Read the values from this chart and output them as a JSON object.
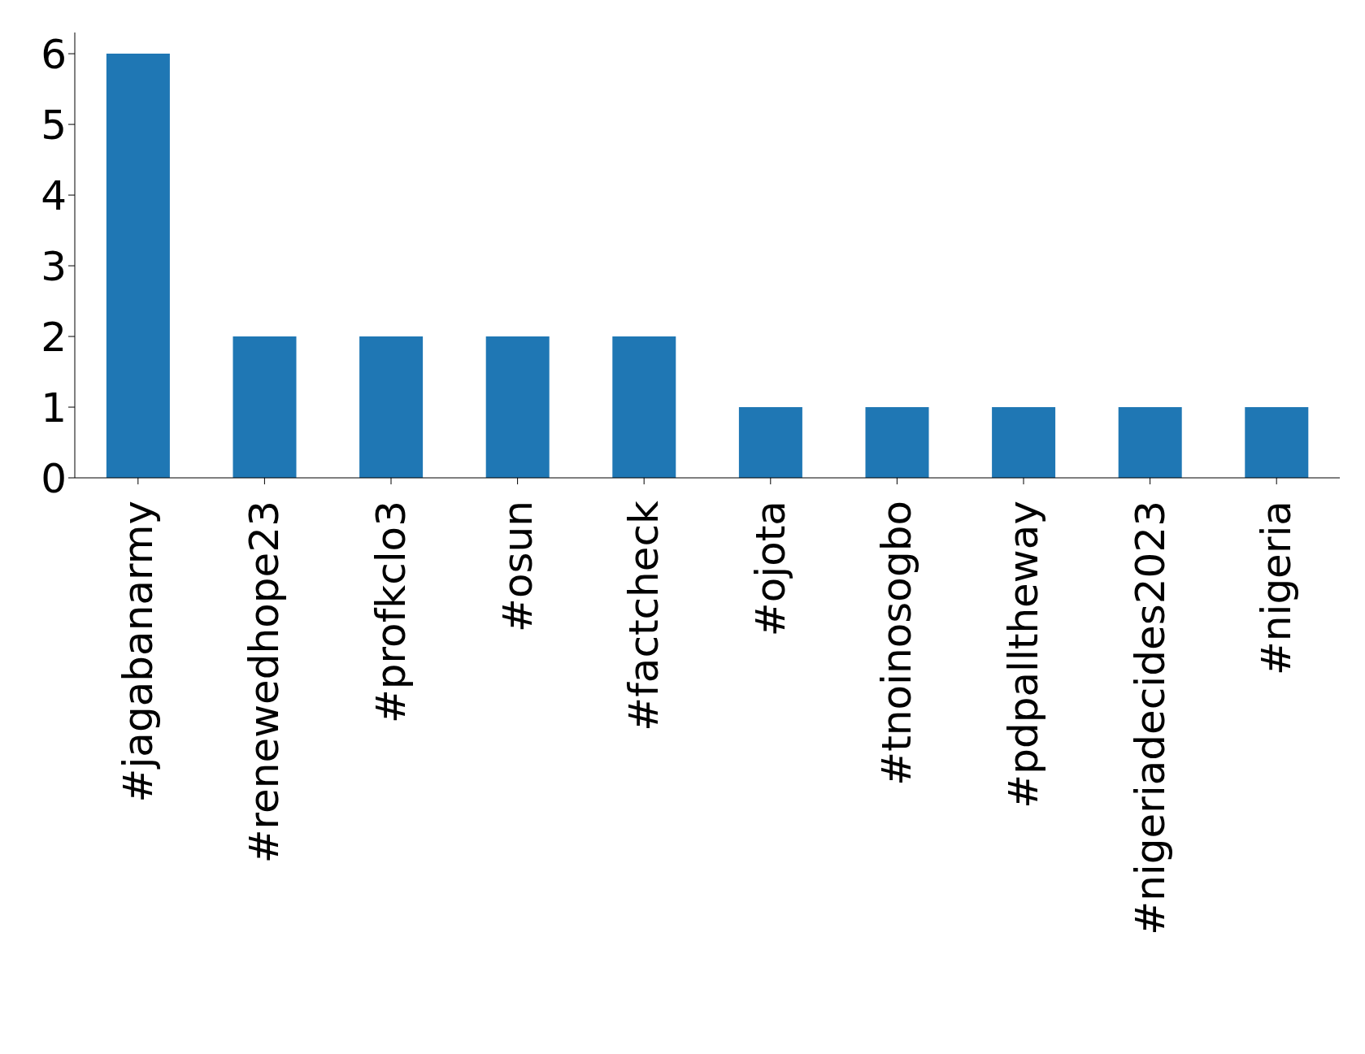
{
  "chart_data": {
    "type": "bar",
    "categories": [
      "#jagabanarmy",
      "#renewedhope23",
      "#profkclo3",
      "#osun",
      "#factcheck",
      "#ojota",
      "#tnoinosogbo",
      "#pdpalltheway",
      "#nigeriadecides2023",
      "#nigeria"
    ],
    "values": [
      6,
      2,
      2,
      2,
      2,
      1,
      1,
      1,
      1,
      1
    ],
    "color": "#1f77b4",
    "ylim": [
      0,
      6.3
    ],
    "yticks": [
      0,
      1,
      2,
      3,
      4,
      5,
      6
    ],
    "grid": false,
    "legend": false
  }
}
